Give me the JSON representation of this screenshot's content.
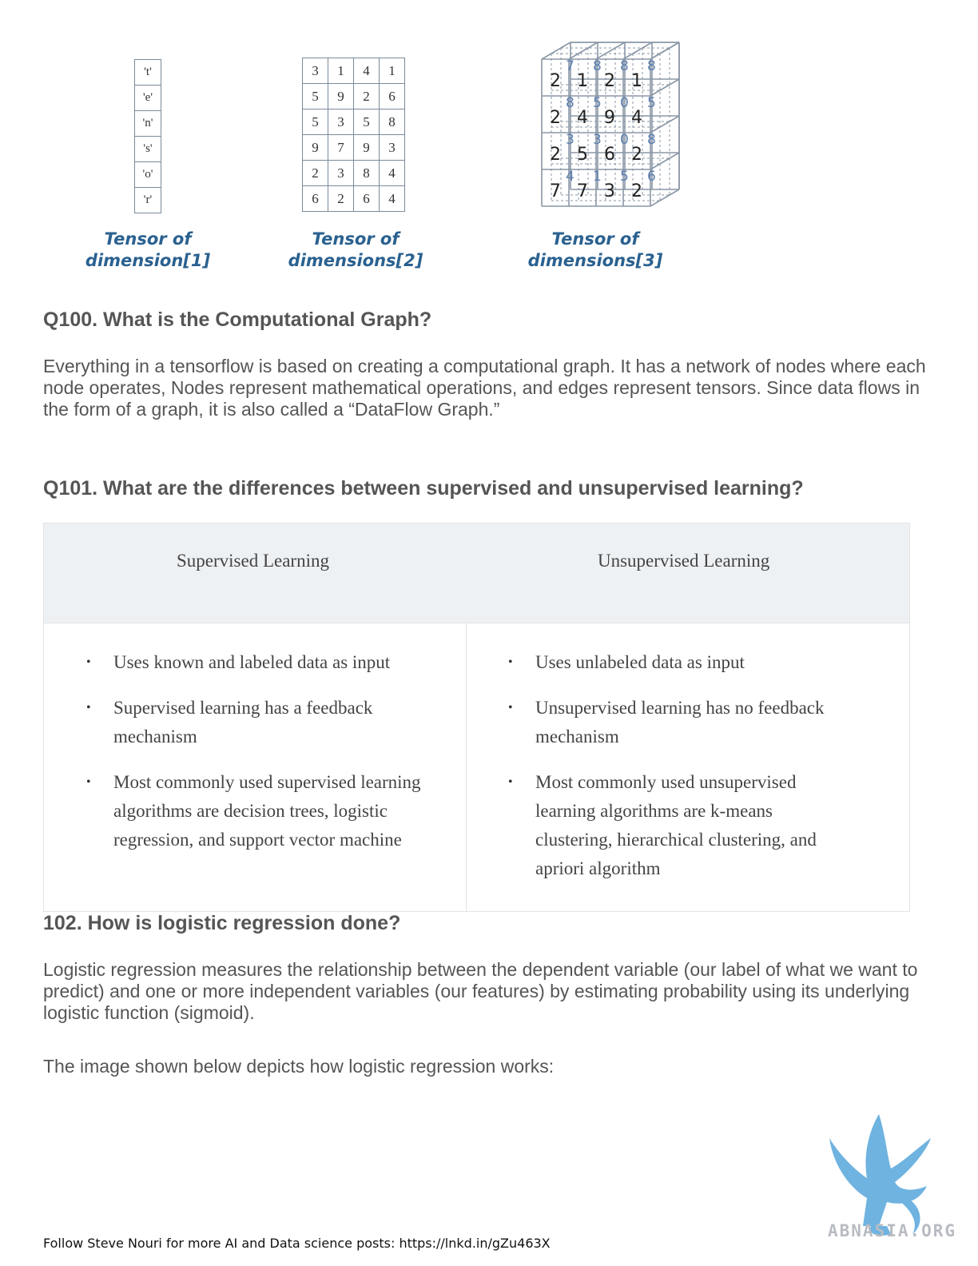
{
  "figure": {
    "tensor1": {
      "values": [
        "'t'",
        "'e'",
        "'n'",
        "'s'",
        "'o'",
        "'r'"
      ],
      "caption_line1": "Tensor of",
      "caption_line2": "dimension[1]"
    },
    "tensor2": {
      "rows": [
        [
          "3",
          "1",
          "4",
          "1"
        ],
        [
          "5",
          "9",
          "2",
          "6"
        ],
        [
          "5",
          "3",
          "5",
          "8"
        ],
        [
          "9",
          "7",
          "9",
          "3"
        ],
        [
          "2",
          "3",
          "8",
          "4"
        ],
        [
          "6",
          "2",
          "6",
          "4"
        ]
      ],
      "caption_line1": "Tensor of",
      "caption_line2": "dimensions[2]"
    },
    "tensor3": {
      "front": [
        [
          "2",
          "1",
          "2",
          "1"
        ],
        [
          "2",
          "4",
          "9",
          "4"
        ],
        [
          "2",
          "5",
          "6",
          "2"
        ],
        [
          "7",
          "7",
          "3",
          "2"
        ]
      ],
      "back": [
        [
          "7",
          "8",
          "8",
          "8"
        ],
        [
          "8",
          "5",
          "0",
          "5"
        ],
        [
          "3",
          "3",
          "0",
          "8"
        ],
        [
          "4",
          "1",
          "5",
          "6"
        ]
      ],
      "caption_line1": "Tensor of",
      "caption_line2": "dimensions[3]"
    }
  },
  "q100": {
    "heading": "Q100. What is the Computational Graph?",
    "body": "Everything in a tensorflow is based on creating a computational graph. It has a network of nodes where each node operates, Nodes represent mathematical operations, and edges represent tensors. Since data flows in the form of a graph, it is also called a “DataFlow Graph.”"
  },
  "q101": {
    "heading": "Q101. What are the differences between supervised and unsupervised learning?",
    "table": {
      "col1_header": "Supervised Learning",
      "col2_header": "Unsupervised Learning",
      "col1_items": [
        "Uses known and labeled data as input",
        "Supervised learning has a feedback mechanism",
        "Most commonly used supervised learning algorithms are decision trees, logistic regression, and support vector machine"
      ],
      "col2_items": [
        "Uses unlabeled data as input",
        "Unsupervised learning has no feedback mechanism",
        "Most commonly used unsupervised learning algorithms are k-means clustering, hierarchical clustering, and apriori algorithm"
      ],
      "bullet": "•"
    }
  },
  "q102": {
    "heading": "102. How is logistic regression done?",
    "body": "Logistic regression measures the relationship between the dependent variable (our label of what we want to predict) and one or more independent variables (our features) by estimating probability using its underlying logistic function (sigmoid).",
    "body2": "The image shown below depicts how logistic regression works:"
  },
  "footer": {
    "text": "Follow Steve Nouri for more AI and Data science posts: https://lnkd.in/gZu463X"
  },
  "logo": {
    "text": "ABNASIA.ORG",
    "icon": "griffin-logo-icon",
    "color": "#6fb3e0"
  }
}
